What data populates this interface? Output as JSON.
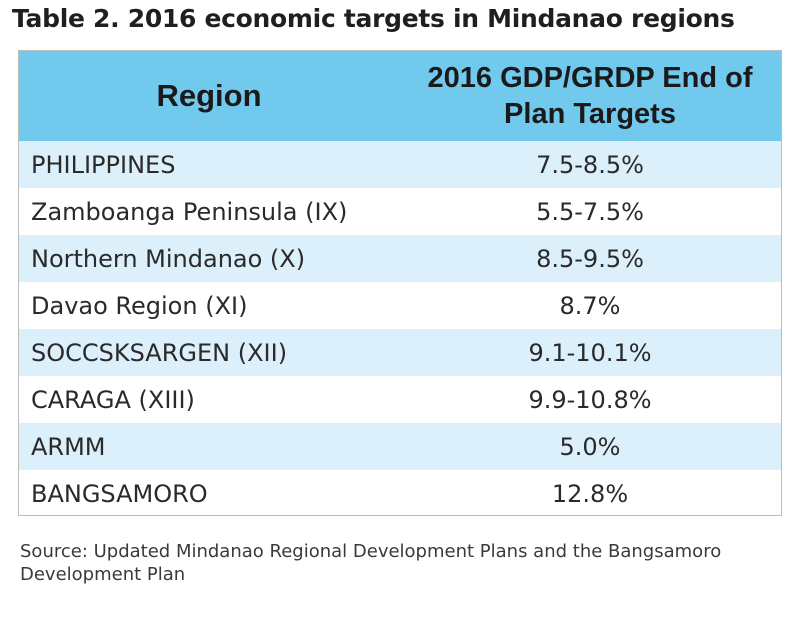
{
  "title": "Table 2. 2016 economic targets in Mindanao regions",
  "table": {
    "headers": {
      "region": "Region",
      "target": "2016 GDP/GRDP End of Plan Targets"
    },
    "rows": [
      {
        "region": "PHILIPPINES",
        "target": "7.5-8.5%"
      },
      {
        "region": "Zamboanga Peninsula (IX)",
        "target": "5.5-7.5%"
      },
      {
        "region": "Northern Mindanao (X)",
        "target": "8.5-9.5%"
      },
      {
        "region": "Davao Region (XI)",
        "target": "8.7%"
      },
      {
        "region": "SOCCSKSARGEN (XII)",
        "target": "9.1-10.1%"
      },
      {
        "region": "CARAGA (XIII)",
        "target": "9.9-10.8%"
      },
      {
        "region": "ARMM",
        "target": "5.0%"
      },
      {
        "region": "BANGSAMORO",
        "target": "12.8%"
      }
    ]
  },
  "source": "Source: Updated Mindanao Regional Development Plans and the Bangsamoro Development Plan",
  "colors": {
    "header_bg": "#71c9ee",
    "row_shade": "#dcf0fb",
    "border": "#bdbdbd"
  }
}
